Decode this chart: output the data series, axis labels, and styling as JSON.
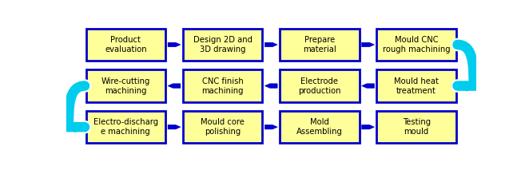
{
  "background_color": "#ffffff",
  "box_fill": "#ffff99",
  "box_edge": "#0000cc",
  "arrow_color": "#0000cc",
  "text_color": "#000000",
  "rows": [
    {
      "direction": "right",
      "boxes": [
        "Product\nevaluation",
        "Design 2D and\n3D drawing",
        "Prepare\nmaterial",
        "Mould CNC\nrough machining"
      ]
    },
    {
      "direction": "left",
      "boxes": [
        "Wire-cutting\nmachining",
        "CNC finish\nmachining",
        "Electrode\nproduction",
        "Mould heat\ntreatment"
      ]
    },
    {
      "direction": "right",
      "boxes": [
        "Electro-discharg\ne machining",
        "Mould core\npolishing",
        "Mold\nAssembling",
        "Testing\nmould"
      ]
    }
  ],
  "n_cols": 4,
  "n_rows": 3,
  "fig_width": 6.62,
  "fig_height": 2.13,
  "font_size": 7.2,
  "curve_arrow_color": "#00ccee"
}
